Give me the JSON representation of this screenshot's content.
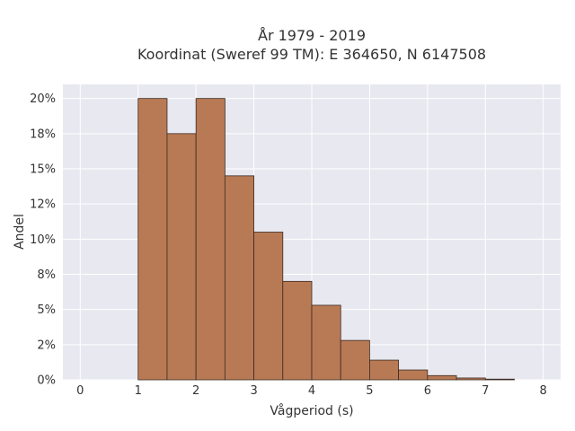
{
  "chart_data": {
    "type": "bar",
    "title": "År 1979 - 2019",
    "subtitle": "Koordinat (Sweref 99 TM): E 364650, N 6147508",
    "xlabel": "Vågperiod (s)",
    "ylabel": "Andel",
    "bin_width": 0.5,
    "bins": [
      {
        "x0": 1.0,
        "value": 0.2
      },
      {
        "x0": 1.5,
        "value": 0.175
      },
      {
        "x0": 2.0,
        "value": 0.2
      },
      {
        "x0": 2.5,
        "value": 0.145
      },
      {
        "x0": 3.0,
        "value": 0.105
      },
      {
        "x0": 3.5,
        "value": 0.07
      },
      {
        "x0": 4.0,
        "value": 0.053
      },
      {
        "x0": 4.5,
        "value": 0.028
      },
      {
        "x0": 5.0,
        "value": 0.014
      },
      {
        "x0": 5.5,
        "value": 0.007
      },
      {
        "x0": 6.0,
        "value": 0.003
      },
      {
        "x0": 6.5,
        "value": 0.0013
      },
      {
        "x0": 7.0,
        "value": 0.0005
      }
    ],
    "xlim": [
      -0.3,
      8.3
    ],
    "ylim": [
      0,
      0.21
    ],
    "x_ticks": [
      {
        "v": 0,
        "label": "0"
      },
      {
        "v": 1,
        "label": "1"
      },
      {
        "v": 2,
        "label": "2"
      },
      {
        "v": 3,
        "label": "3"
      },
      {
        "v": 4,
        "label": "4"
      },
      {
        "v": 5,
        "label": "5"
      },
      {
        "v": 6,
        "label": "6"
      },
      {
        "v": 7,
        "label": "7"
      },
      {
        "v": 8,
        "label": "8"
      }
    ],
    "y_ticks": [
      {
        "v": 0.0,
        "label": "0%"
      },
      {
        "v": 0.025,
        "label": "2%"
      },
      {
        "v": 0.05,
        "label": "5%"
      },
      {
        "v": 0.075,
        "label": "8%"
      },
      {
        "v": 0.1,
        "label": "10%"
      },
      {
        "v": 0.125,
        "label": "12%"
      },
      {
        "v": 0.15,
        "label": "15%"
      },
      {
        "v": 0.175,
        "label": "18%"
      },
      {
        "v": 0.2,
        "label": "20%"
      }
    ],
    "grid": true,
    "colors": {
      "plot_background": "#e8e8f0",
      "grid": "#ffffff",
      "bar_fill": "#b87a55",
      "bar_edge": "#3b2a20"
    }
  }
}
